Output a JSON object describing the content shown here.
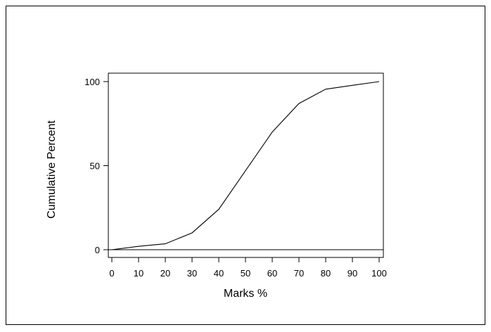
{
  "chart_data": {
    "type": "line",
    "title": "",
    "xlabel": "Marks %",
    "ylabel": "Cumulative Percent",
    "xlim": [
      0,
      100
    ],
    "ylim": [
      0,
      100
    ],
    "x_ticks": [
      0,
      10,
      20,
      30,
      40,
      50,
      60,
      70,
      80,
      90,
      100
    ],
    "y_ticks": [
      0,
      50,
      100
    ],
    "grid": false,
    "reference_line": {
      "y": 0
    },
    "series": [
      {
        "x": [
          0,
          10,
          20,
          30,
          40,
          50,
          60,
          70,
          80,
          90,
          100
        ],
        "values": [
          0,
          2,
          3.5,
          10,
          24,
          47,
          70,
          87,
          95.5,
          97.8,
          100
        ]
      }
    ],
    "colors": {
      "line": "#000000",
      "axes": "#000000",
      "background": "#ffffff"
    }
  }
}
